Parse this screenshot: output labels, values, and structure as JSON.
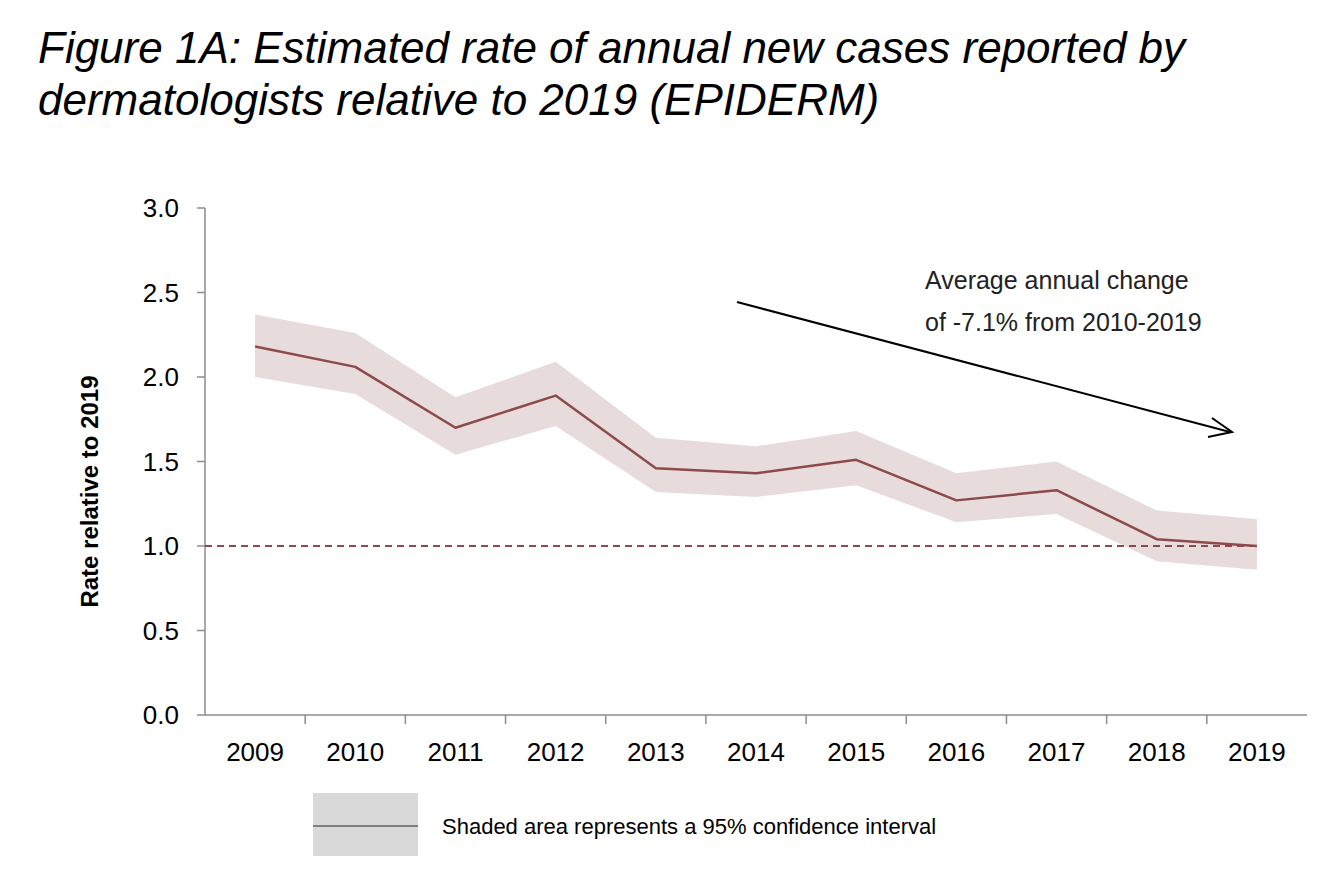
{
  "chart_data": {
    "type": "line",
    "title": "Figure 1A: Estimated rate of annual new cases reported by dermatologists relative to 2019 (EPIDERM)",
    "y_label": "Rate relative to 2019",
    "annotation": [
      "Average annual change",
      "of -7.1% from 2010-2019"
    ],
    "categories": [
      "2009",
      "2010",
      "2011",
      "2012",
      "2013",
      "2014",
      "2015",
      "2016",
      "2017",
      "2018",
      "2019"
    ],
    "series": [
      {
        "name": "Shaded area represents a 95% confidence interval",
        "color": "#8c4a4a",
        "values": [
          2.18,
          2.06,
          1.7,
          1.89,
          1.46,
          1.43,
          1.51,
          1.27,
          1.33,
          1.04,
          1.0
        ],
        "ci_lower": [
          2.0,
          1.9,
          1.54,
          1.71,
          1.32,
          1.29,
          1.36,
          1.14,
          1.19,
          0.91,
          0.86
        ],
        "ci_upper": [
          2.37,
          2.26,
          1.88,
          2.09,
          1.64,
          1.59,
          1.68,
          1.43,
          1.5,
          1.21,
          1.16
        ]
      }
    ],
    "reference_line": 1,
    "ylim": [
      0,
      3
    ],
    "yticks": [
      {
        "value": 0,
        "label": "0.0"
      },
      {
        "value": 0.5,
        "label": "0.5"
      },
      {
        "value": 1,
        "label": "1.0"
      },
      {
        "value": 1.5,
        "label": "1.5"
      },
      {
        "value": 2,
        "label": "2.0"
      },
      {
        "value": 2.5,
        "label": "2.5"
      },
      {
        "value": 3,
        "label": "3.0"
      }
    ],
    "legend": "bottom",
    "grid": false
  }
}
